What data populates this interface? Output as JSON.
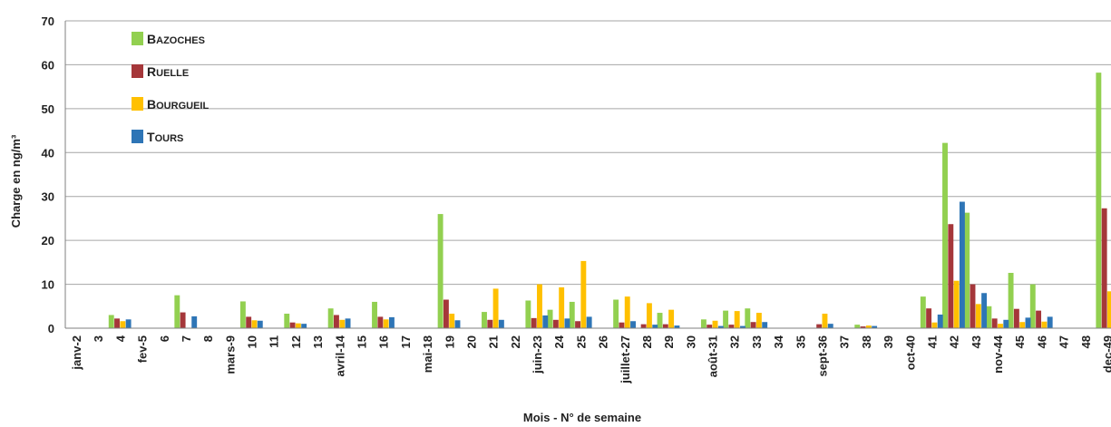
{
  "chart_data": {
    "type": "bar",
    "ylabel": "Charge en ng/m³",
    "xlabel": "Mois - N° de semaine",
    "ylim": [
      0,
      70
    ],
    "yticks": [
      0,
      10,
      20,
      30,
      40,
      50,
      60,
      70
    ],
    "grid": true,
    "legend_position": "top-left",
    "categories": [
      "janv-2",
      "3",
      "4",
      "fev-5",
      "6",
      "7",
      "8",
      "mars-9",
      "10",
      "11",
      "12",
      "13",
      "avril-14",
      "15",
      "16",
      "17",
      "mai-18",
      "19",
      "20",
      "21",
      "22",
      "juin-23",
      "24",
      "25",
      "26",
      "juillet-27",
      "28",
      "29",
      "30",
      "août-31",
      "32",
      "33",
      "34",
      "35",
      "sept-36",
      "37",
      "38",
      "39",
      "oct-40",
      "41",
      "42",
      "43",
      "nov-44",
      "45",
      "46",
      "47",
      "48",
      "dec-49"
    ],
    "series": [
      {
        "name": "Bazoches",
        "color": "#92d050",
        "values": [
          0,
          0,
          3,
          0,
          0,
          7.5,
          0,
          0,
          6.1,
          0,
          3.3,
          0,
          4.5,
          0,
          6,
          0,
          0,
          26,
          0,
          3.7,
          0,
          6.3,
          4.2,
          6,
          0,
          6.5,
          0,
          3.5,
          0,
          2,
          4,
          4.5,
          0,
          0,
          0,
          0,
          0.8,
          0,
          0,
          7.2,
          42.2,
          26.3,
          5,
          12.6,
          10,
          0,
          0,
          58.2
        ]
      },
      {
        "name": "Ruelle",
        "color": "#a5373a",
        "values": [
          0,
          0,
          2.2,
          0,
          0,
          3.6,
          0,
          0,
          2.6,
          0,
          1.3,
          0,
          3,
          0,
          2.6,
          0,
          0,
          6.5,
          0,
          1.9,
          0,
          2.3,
          1.9,
          1.6,
          0,
          1.3,
          0.9,
          0.9,
          0,
          0.8,
          0.8,
          1.4,
          0,
          0,
          0.9,
          0,
          0.4,
          0,
          0,
          4.5,
          23.7,
          10,
          2.2,
          4.4,
          4,
          0,
          0,
          27.3
        ]
      },
      {
        "name": "Bourgueil",
        "color": "#ffc000",
        "values": [
          0,
          0,
          1.6,
          0,
          0,
          0,
          0,
          0,
          1.8,
          0,
          1.1,
          0,
          1.9,
          0,
          2,
          0,
          0,
          3.3,
          0,
          9,
          0,
          10,
          9.3,
          15.3,
          0,
          7.2,
          5.7,
          4.2,
          0,
          1.7,
          3.9,
          3.5,
          0,
          0,
          3.3,
          0,
          0.6,
          0,
          0,
          1.3,
          10.8,
          5.5,
          1,
          1.4,
          1.5,
          0,
          0,
          8.4
        ]
      },
      {
        "name": "Tours",
        "color": "#2e75b6",
        "values": [
          0,
          0,
          2,
          0,
          0,
          2.7,
          0,
          0,
          1.7,
          0,
          1,
          0,
          2.2,
          0,
          2.5,
          0,
          0,
          1.8,
          0,
          1.9,
          0,
          2.9,
          2.2,
          2.6,
          0,
          1.6,
          0.8,
          0.6,
          0,
          0.5,
          0.5,
          1.4,
          0,
          0,
          1,
          0,
          0.5,
          0,
          0,
          3.1,
          28.8,
          8,
          1.9,
          2.4,
          2.6,
          0,
          0,
          0
        ]
      }
    ]
  }
}
